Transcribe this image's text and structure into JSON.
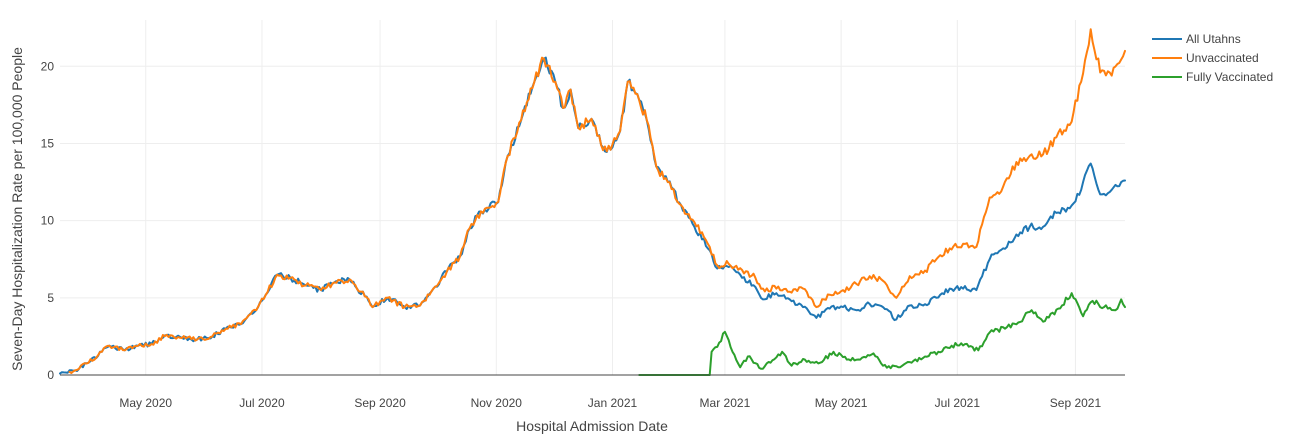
{
  "chart_data": {
    "type": "line",
    "xlabel": "Hospital Admission Date",
    "ylabel": "Seven-Day Hospitalization Rate per 100,000 People",
    "x_range": [
      "2020-03-17",
      "2021-09-27"
    ],
    "ylim": [
      0,
      23
    ],
    "yticks": [
      0,
      5,
      10,
      15,
      20
    ],
    "xticks": [
      {
        "date": "2020-05-01",
        "label": "May 2020"
      },
      {
        "date": "2020-07-01",
        "label": "Jul 2020"
      },
      {
        "date": "2020-09-01",
        "label": "Sep 2020"
      },
      {
        "date": "2020-11-01",
        "label": "Nov 2020"
      },
      {
        "date": "2021-01-01",
        "label": "Jan 2021"
      },
      {
        "date": "2021-03-01",
        "label": "Mar 2021"
      },
      {
        "date": "2021-05-01",
        "label": "May 2021"
      },
      {
        "date": "2021-07-01",
        "label": "Jul 2021"
      },
      {
        "date": "2021-09-01",
        "label": "Sep 2021"
      }
    ],
    "grid": true,
    "legend_position": "top-right",
    "series": [
      {
        "name": "All Utahns",
        "color": "#1f77b4",
        "points": [
          [
            "2020-03-17",
            0.1
          ],
          [
            "2020-03-25",
            0.3
          ],
          [
            "2020-04-01",
            0.8
          ],
          [
            "2020-04-08",
            1.5
          ],
          [
            "2020-04-12",
            1.9
          ],
          [
            "2020-04-20",
            1.6
          ],
          [
            "2020-04-27",
            1.9
          ],
          [
            "2020-05-04",
            2.0
          ],
          [
            "2020-05-12",
            2.6
          ],
          [
            "2020-05-20",
            2.4
          ],
          [
            "2020-05-28",
            2.3
          ],
          [
            "2020-06-05",
            2.5
          ],
          [
            "2020-06-12",
            3.0
          ],
          [
            "2020-06-20",
            3.3
          ],
          [
            "2020-06-28",
            4.2
          ],
          [
            "2020-07-03",
            5.2
          ],
          [
            "2020-07-09",
            6.5
          ],
          [
            "2020-07-16",
            6.3
          ],
          [
            "2020-07-24",
            5.8
          ],
          [
            "2020-08-01",
            5.5
          ],
          [
            "2020-08-08",
            6.0
          ],
          [
            "2020-08-16",
            6.2
          ],
          [
            "2020-08-24",
            5.1
          ],
          [
            "2020-08-28",
            4.4
          ],
          [
            "2020-09-05",
            5.0
          ],
          [
            "2020-09-14",
            4.4
          ],
          [
            "2020-09-22",
            4.5
          ],
          [
            "2020-09-29",
            5.6
          ],
          [
            "2020-10-06",
            6.7
          ],
          [
            "2020-10-13",
            7.7
          ],
          [
            "2020-10-18",
            9.5
          ],
          [
            "2020-10-24",
            10.6
          ],
          [
            "2020-11-02",
            11.2
          ],
          [
            "2020-11-07",
            14.2
          ],
          [
            "2020-11-14",
            16.5
          ],
          [
            "2020-11-21",
            19.0
          ],
          [
            "2020-11-26",
            20.5
          ],
          [
            "2020-12-02",
            19.0
          ],
          [
            "2020-12-06",
            17.3
          ],
          [
            "2020-12-10",
            18.5
          ],
          [
            "2020-12-14",
            16.0
          ],
          [
            "2020-12-21",
            16.6
          ],
          [
            "2020-12-26",
            14.9
          ],
          [
            "2020-12-31",
            14.6
          ],
          [
            "2021-01-05",
            15.8
          ],
          [
            "2021-01-09",
            19.0
          ],
          [
            "2021-01-14",
            18.2
          ],
          [
            "2021-01-19",
            16.5
          ],
          [
            "2021-01-24",
            13.5
          ],
          [
            "2021-01-30",
            12.5
          ],
          [
            "2021-02-06",
            11.0
          ],
          [
            "2021-02-13",
            9.6
          ],
          [
            "2021-02-20",
            8.2
          ],
          [
            "2021-02-25",
            6.9
          ],
          [
            "2021-03-03",
            7.0
          ],
          [
            "2021-03-10",
            6.3
          ],
          [
            "2021-03-17",
            5.7
          ],
          [
            "2021-03-21",
            4.9
          ],
          [
            "2021-03-28",
            5.3
          ],
          [
            "2021-04-04",
            4.9
          ],
          [
            "2021-04-11",
            4.4
          ],
          [
            "2021-04-18",
            3.7
          ],
          [
            "2021-04-25",
            4.3
          ],
          [
            "2021-05-02",
            4.4
          ],
          [
            "2021-05-09",
            4.2
          ],
          [
            "2021-05-16",
            4.6
          ],
          [
            "2021-05-23",
            4.4
          ],
          [
            "2021-05-30",
            3.6
          ],
          [
            "2021-06-06",
            4.5
          ],
          [
            "2021-06-13",
            4.5
          ],
          [
            "2021-06-20",
            5.0
          ],
          [
            "2021-06-27",
            5.6
          ],
          [
            "2021-07-04",
            5.6
          ],
          [
            "2021-07-11",
            5.5
          ],
          [
            "2021-07-18",
            7.5
          ],
          [
            "2021-07-25",
            8.2
          ],
          [
            "2021-08-01",
            9.1
          ],
          [
            "2021-08-08",
            9.6
          ],
          [
            "2021-08-15",
            9.6
          ],
          [
            "2021-08-22",
            10.5
          ],
          [
            "2021-08-29",
            10.8
          ],
          [
            "2021-09-04",
            12.0
          ],
          [
            "2021-09-09",
            13.7
          ],
          [
            "2021-09-14",
            11.7
          ],
          [
            "2021-09-20",
            12.0
          ],
          [
            "2021-09-27",
            12.6
          ]
        ]
      },
      {
        "name": "Unvaccinated",
        "color": "#ff7f0e",
        "points": [
          [
            "2020-03-22",
            0.2
          ],
          [
            "2020-03-25",
            0.3
          ],
          [
            "2020-04-01",
            0.8
          ],
          [
            "2020-04-08",
            1.5
          ],
          [
            "2020-04-12",
            1.9
          ],
          [
            "2020-04-20",
            1.6
          ],
          [
            "2020-04-27",
            1.9
          ],
          [
            "2020-05-04",
            2.0
          ],
          [
            "2020-05-12",
            2.6
          ],
          [
            "2020-05-20",
            2.4
          ],
          [
            "2020-05-28",
            2.3
          ],
          [
            "2020-06-05",
            2.5
          ],
          [
            "2020-06-12",
            3.0
          ],
          [
            "2020-06-20",
            3.3
          ],
          [
            "2020-06-28",
            4.2
          ],
          [
            "2020-07-03",
            5.2
          ],
          [
            "2020-07-09",
            6.5
          ],
          [
            "2020-07-16",
            6.3
          ],
          [
            "2020-07-24",
            5.8
          ],
          [
            "2020-08-01",
            5.5
          ],
          [
            "2020-08-08",
            6.0
          ],
          [
            "2020-08-16",
            6.2
          ],
          [
            "2020-08-24",
            5.1
          ],
          [
            "2020-08-28",
            4.4
          ],
          [
            "2020-09-05",
            5.0
          ],
          [
            "2020-09-14",
            4.4
          ],
          [
            "2020-09-22",
            4.5
          ],
          [
            "2020-09-29",
            5.6
          ],
          [
            "2020-10-06",
            6.7
          ],
          [
            "2020-10-13",
            7.7
          ],
          [
            "2020-10-18",
            9.5
          ],
          [
            "2020-10-24",
            10.6
          ],
          [
            "2020-11-02",
            11.2
          ],
          [
            "2020-11-07",
            14.2
          ],
          [
            "2020-11-14",
            16.5
          ],
          [
            "2020-11-21",
            19.0
          ],
          [
            "2020-11-26",
            20.5
          ],
          [
            "2020-12-02",
            19.0
          ],
          [
            "2020-12-06",
            17.3
          ],
          [
            "2020-12-10",
            18.5
          ],
          [
            "2020-12-14",
            16.0
          ],
          [
            "2020-12-21",
            16.6
          ],
          [
            "2020-12-26",
            14.9
          ],
          [
            "2020-12-31",
            14.6
          ],
          [
            "2021-01-05",
            15.8
          ],
          [
            "2021-01-09",
            19.0
          ],
          [
            "2021-01-14",
            18.2
          ],
          [
            "2021-01-19",
            16.5
          ],
          [
            "2021-01-24",
            13.5
          ],
          [
            "2021-01-30",
            12.5
          ],
          [
            "2021-02-06",
            11.0
          ],
          [
            "2021-02-13",
            9.9
          ],
          [
            "2021-02-20",
            8.5
          ],
          [
            "2021-02-25",
            7.1
          ],
          [
            "2021-03-03",
            7.2
          ],
          [
            "2021-03-10",
            6.8
          ],
          [
            "2021-03-17",
            6.3
          ],
          [
            "2021-03-21",
            5.6
          ],
          [
            "2021-03-28",
            5.6
          ],
          [
            "2021-04-04",
            5.4
          ],
          [
            "2021-04-11",
            5.6
          ],
          [
            "2021-04-18",
            4.4
          ],
          [
            "2021-04-25",
            5.2
          ],
          [
            "2021-05-02",
            5.5
          ],
          [
            "2021-05-09",
            5.9
          ],
          [
            "2021-05-16",
            6.4
          ],
          [
            "2021-05-23",
            6.1
          ],
          [
            "2021-05-30",
            5.0
          ],
          [
            "2021-06-06",
            6.4
          ],
          [
            "2021-06-13",
            6.6
          ],
          [
            "2021-06-20",
            7.5
          ],
          [
            "2021-06-27",
            8.2
          ],
          [
            "2021-07-04",
            8.5
          ],
          [
            "2021-07-11",
            8.3
          ],
          [
            "2021-07-18",
            11.5
          ],
          [
            "2021-07-25",
            12.2
          ],
          [
            "2021-08-01",
            13.8
          ],
          [
            "2021-08-08",
            14.2
          ],
          [
            "2021-08-15",
            14.3
          ],
          [
            "2021-08-22",
            15.4
          ],
          [
            "2021-08-29",
            16.2
          ],
          [
            "2021-09-04",
            19.0
          ],
          [
            "2021-09-09",
            22.4
          ],
          [
            "2021-09-14",
            19.6
          ],
          [
            "2021-09-20",
            19.4
          ],
          [
            "2021-09-27",
            21.0
          ]
        ]
      },
      {
        "name": "Fully Vaccinated",
        "color": "#2ca02c",
        "points": [
          [
            "2021-01-15",
            0.0
          ],
          [
            "2021-02-21",
            0.0
          ],
          [
            "2021-02-22",
            1.5
          ],
          [
            "2021-02-26",
            2.1
          ],
          [
            "2021-03-01",
            2.8
          ],
          [
            "2021-03-05",
            1.5
          ],
          [
            "2021-03-09",
            0.5
          ],
          [
            "2021-03-13",
            1.2
          ],
          [
            "2021-03-20",
            0.4
          ],
          [
            "2021-03-25",
            0.8
          ],
          [
            "2021-03-31",
            1.5
          ],
          [
            "2021-04-05",
            0.6
          ],
          [
            "2021-04-12",
            1.0
          ],
          [
            "2021-04-20",
            0.8
          ],
          [
            "2021-04-27",
            1.5
          ],
          [
            "2021-05-04",
            1.0
          ],
          [
            "2021-05-11",
            1.0
          ],
          [
            "2021-05-18",
            1.4
          ],
          [
            "2021-05-23",
            0.6
          ],
          [
            "2021-05-31",
            0.5
          ],
          [
            "2021-06-07",
            0.8
          ],
          [
            "2021-06-14",
            1.2
          ],
          [
            "2021-06-21",
            1.5
          ],
          [
            "2021-06-28",
            1.9
          ],
          [
            "2021-07-05",
            2.0
          ],
          [
            "2021-07-12",
            1.6
          ],
          [
            "2021-07-19",
            2.9
          ],
          [
            "2021-07-26",
            3.0
          ],
          [
            "2021-08-02",
            3.4
          ],
          [
            "2021-08-09",
            4.2
          ],
          [
            "2021-08-16",
            3.5
          ],
          [
            "2021-08-23",
            4.3
          ],
          [
            "2021-08-30",
            5.3
          ],
          [
            "2021-09-05",
            3.8
          ],
          [
            "2021-09-10",
            4.8
          ],
          [
            "2021-09-16",
            4.4
          ],
          [
            "2021-09-22",
            4.2
          ],
          [
            "2021-09-25",
            4.9
          ],
          [
            "2021-09-27",
            4.4
          ]
        ]
      }
    ]
  }
}
